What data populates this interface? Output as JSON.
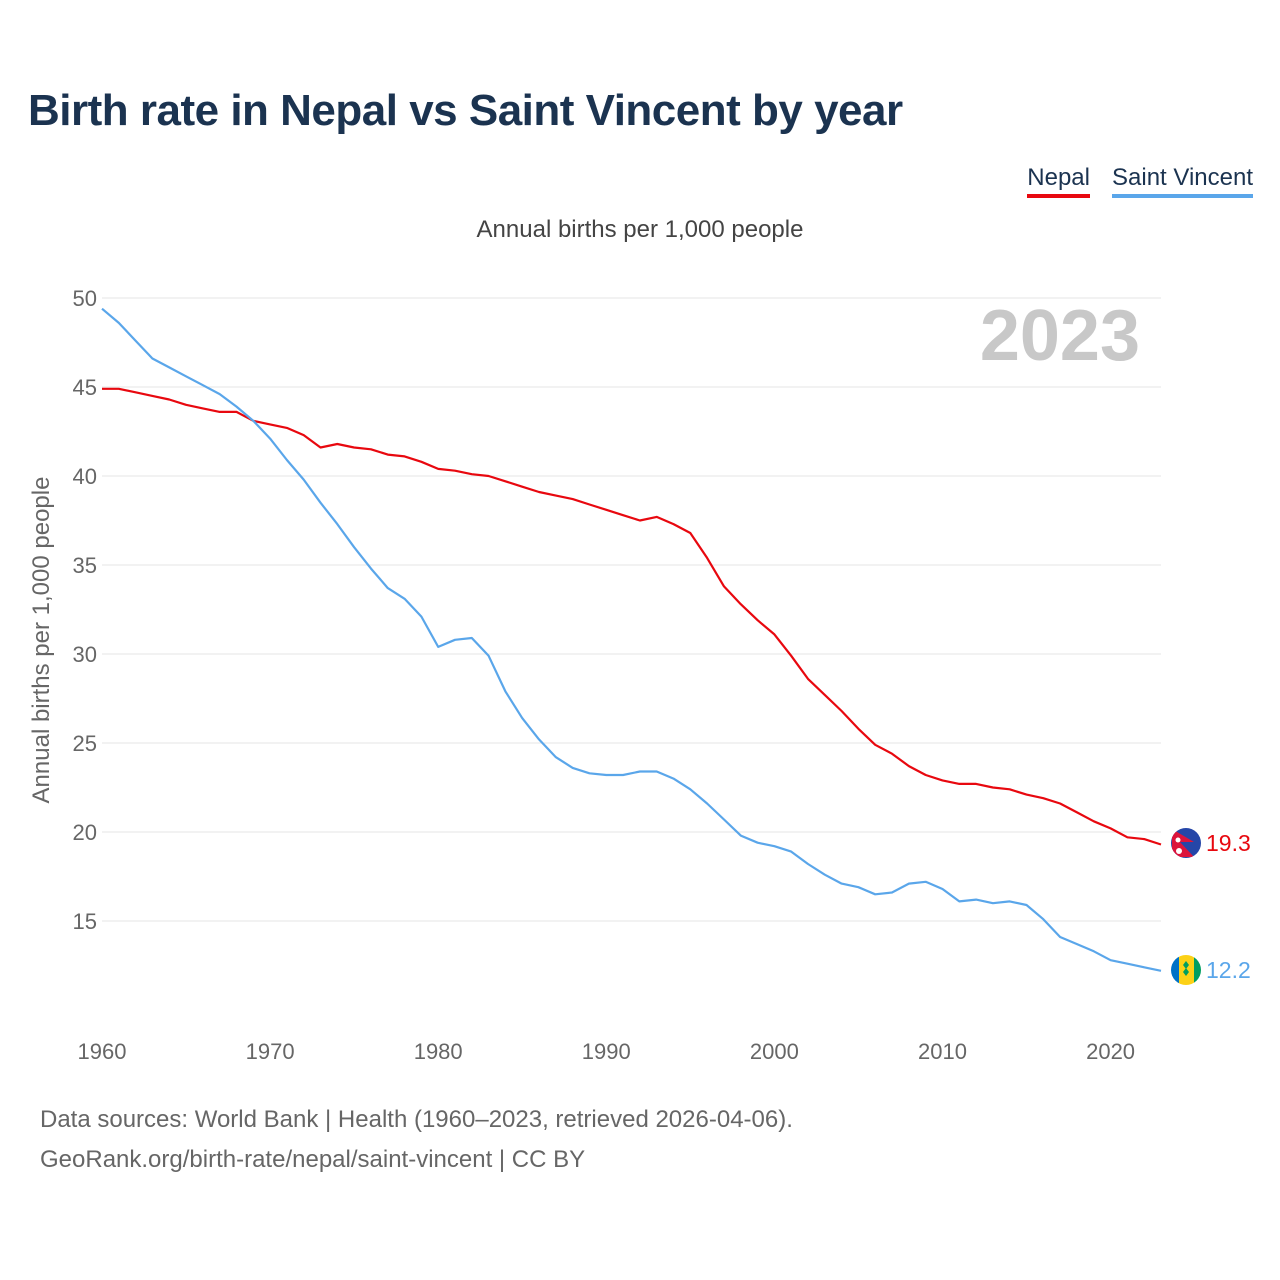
{
  "title": "Birth rate in Nepal vs Saint Vincent by year",
  "subtitle": "Annual births per 1,000 people",
  "legend": [
    {
      "label": "Nepal",
      "color": "#e8080f"
    },
    {
      "label": "Saint Vincent",
      "color": "#5aa6ea"
    }
  ],
  "chart_data": {
    "type": "line",
    "title": "Birth rate in Nepal vs Saint Vincent by year",
    "subtitle": "Annual births per 1,000 people",
    "xlabel": "",
    "ylabel": "Annual births per 1,000 people",
    "xlim": [
      1960,
      2023
    ],
    "ylim": [
      10,
      50
    ],
    "yticks": [
      15,
      20,
      25,
      30,
      35,
      40,
      45,
      50
    ],
    "xticks": [
      1960,
      1970,
      1980,
      1990,
      2000,
      2010,
      2020
    ],
    "grid": true,
    "year_label": "2023",
    "x": [
      1960,
      1961,
      1962,
      1963,
      1964,
      1965,
      1966,
      1967,
      1968,
      1969,
      1970,
      1971,
      1972,
      1973,
      1974,
      1975,
      1976,
      1977,
      1978,
      1979,
      1980,
      1981,
      1982,
      1983,
      1984,
      1985,
      1986,
      1987,
      1988,
      1989,
      1990,
      1991,
      1992,
      1993,
      1994,
      1995,
      1996,
      1997,
      1998,
      1999,
      2000,
      2001,
      2002,
      2003,
      2004,
      2005,
      2006,
      2007,
      2008,
      2009,
      2010,
      2011,
      2012,
      2013,
      2014,
      2015,
      2016,
      2017,
      2018,
      2019,
      2020,
      2021,
      2022,
      2023
    ],
    "series": [
      {
        "name": "Nepal",
        "color": "#e8080f",
        "end_label": "19.3",
        "values": [
          44.9,
          44.9,
          44.7,
          44.5,
          44.3,
          44.0,
          43.8,
          43.6,
          43.6,
          43.1,
          42.9,
          42.7,
          42.3,
          41.6,
          41.8,
          41.6,
          41.5,
          41.2,
          41.1,
          40.8,
          40.4,
          40.3,
          40.1,
          40.0,
          39.7,
          39.4,
          39.1,
          38.9,
          38.7,
          38.4,
          38.1,
          37.8,
          37.5,
          37.7,
          37.3,
          36.8,
          35.4,
          33.8,
          32.8,
          31.9,
          31.1,
          29.9,
          28.6,
          27.7,
          26.8,
          25.8,
          24.9,
          24.4,
          23.7,
          23.2,
          22.9,
          22.7,
          22.7,
          22.5,
          22.4,
          22.1,
          21.9,
          21.6,
          21.1,
          20.6,
          20.2,
          19.7,
          19.6,
          19.3
        ]
      },
      {
        "name": "Saint Vincent",
        "color": "#5aa6ea",
        "end_label": "12.2",
        "values": [
          49.4,
          48.6,
          47.6,
          46.6,
          46.1,
          45.6,
          45.1,
          44.6,
          43.9,
          43.1,
          42.1,
          40.9,
          39.8,
          38.5,
          37.3,
          36.0,
          34.8,
          33.7,
          33.1,
          32.1,
          30.4,
          30.8,
          30.9,
          29.9,
          27.9,
          26.4,
          25.2,
          24.2,
          23.6,
          23.3,
          23.2,
          23.2,
          23.4,
          23.4,
          23.0,
          22.4,
          21.6,
          20.7,
          19.8,
          19.4,
          19.2,
          18.9,
          18.2,
          17.6,
          17.1,
          16.9,
          16.5,
          16.6,
          17.1,
          17.2,
          16.8,
          16.1,
          16.2,
          16.0,
          16.1,
          15.9,
          15.1,
          14.1,
          13.7,
          13.3,
          12.8,
          12.6,
          12.4,
          12.2
        ]
      }
    ]
  },
  "source": {
    "line1": "Data sources: World Bank | Health (1960–2023, retrieved 2026-04-06).",
    "line2": "GeoRank.org/birth-rate/nepal/saint-vincent | CC BY"
  }
}
